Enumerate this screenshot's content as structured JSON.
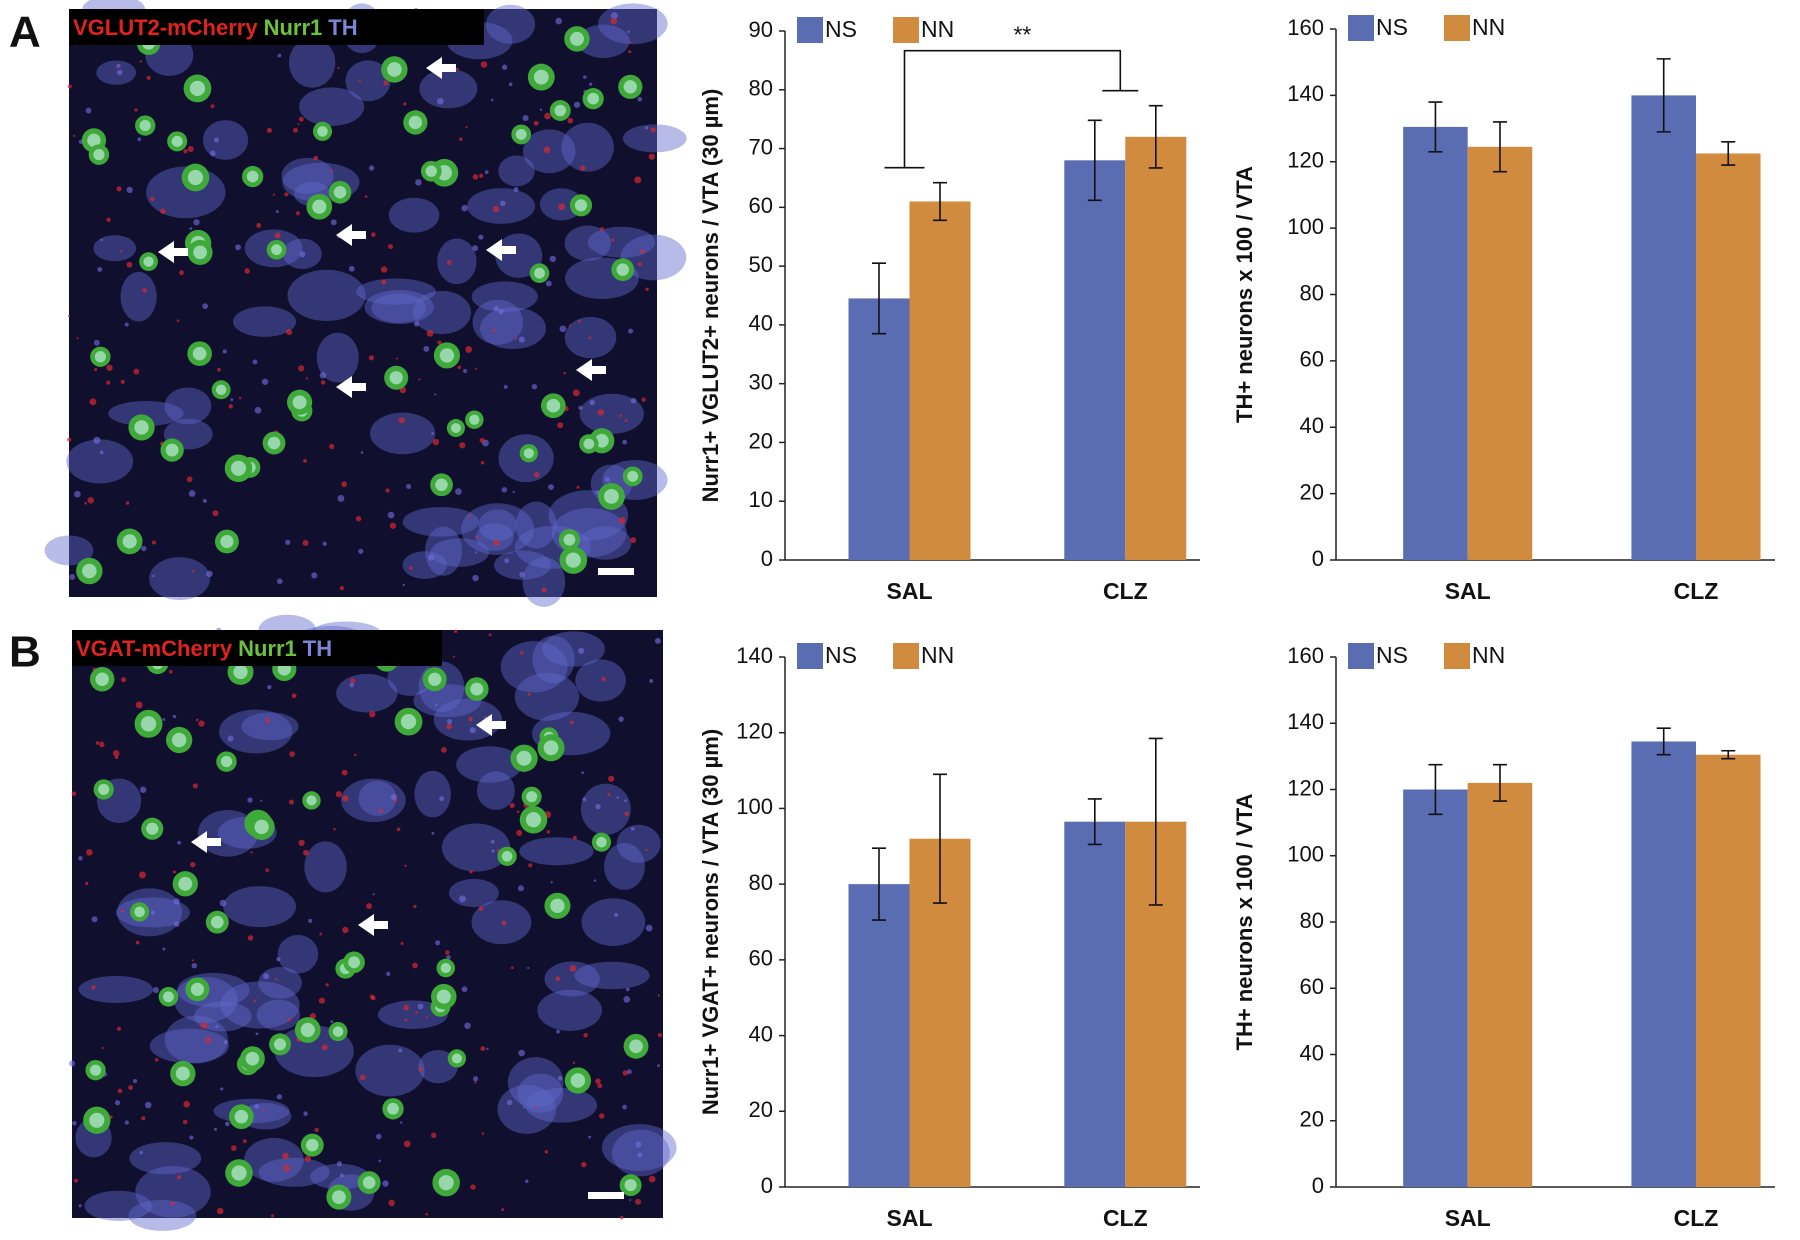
{
  "panels": [
    {
      "label": "A",
      "image_labels": [
        "VGLUT2-mCherry",
        "Nurr1",
        "TH"
      ]
    },
    {
      "label": "B",
      "image_labels": [
        "VGAT-mCherry",
        "Nurr1",
        "TH"
      ]
    }
  ],
  "chart_data": [
    {
      "type": "bar",
      "y_label": "Nurr1+ VGLUT2+ neurons / VTA (30 µm)",
      "categories": [
        "SAL",
        "CLZ"
      ],
      "series": [
        {
          "name": "NS",
          "color": "#5a6cb2",
          "values": [
            44.5,
            68
          ],
          "errors": [
            6,
            6.8
          ]
        },
        {
          "name": "NN",
          "color": "#d08b3e",
          "values": [
            61,
            72
          ],
          "errors": [
            3.2,
            5.3
          ]
        }
      ],
      "ylim": [
        0,
        90
      ],
      "yticks": [
        0,
        10,
        20,
        30,
        40,
        50,
        60,
        70,
        80,
        90
      ],
      "annotations": [
        {
          "text": "**"
        }
      ]
    },
    {
      "type": "bar",
      "y_label": "TH+ neurons x 100 / VTA",
      "categories": [
        "SAL",
        "CLZ"
      ],
      "series": [
        {
          "name": "NS",
          "color": "#5a6cb2",
          "values": [
            130.5,
            140
          ],
          "errors": [
            7.5,
            11
          ]
        },
        {
          "name": "NN",
          "color": "#d08b3e",
          "values": [
            124.5,
            122.5
          ],
          "errors": [
            7.5,
            3.5
          ]
        }
      ],
      "ylim": [
        0,
        160
      ],
      "yticks": [
        0,
        20,
        40,
        60,
        80,
        100,
        120,
        140,
        160
      ]
    },
    {
      "type": "bar",
      "y_label": "Nurr1+ VGAT+ neurons / VTA (30 µm)",
      "categories": [
        "SAL",
        "CLZ"
      ],
      "series": [
        {
          "name": "NS",
          "color": "#5a6cb2",
          "values": [
            80,
            96.5
          ],
          "errors": [
            9.5,
            6
          ]
        },
        {
          "name": "NN",
          "color": "#d08b3e",
          "values": [
            92,
            96.5
          ],
          "errors": [
            17,
            22
          ]
        }
      ],
      "ylim": [
        0,
        140
      ],
      "yticks": [
        0,
        20,
        40,
        60,
        80,
        100,
        120,
        140
      ]
    },
    {
      "type": "bar",
      "y_label": "TH+ neurons x 100 / VTA",
      "categories": [
        "SAL",
        "CLZ"
      ],
      "series": [
        {
          "name": "NS",
          "color": "#5a6cb2",
          "values": [
            120,
            134.5
          ],
          "errors": [
            7.5,
            4
          ]
        },
        {
          "name": "NN",
          "color": "#d08b3e",
          "values": [
            122,
            130.5
          ],
          "errors": [
            5.5,
            1.2
          ]
        }
      ],
      "ylim": [
        0,
        160
      ],
      "yticks": [
        0,
        20,
        40,
        60,
        80,
        100,
        120,
        140,
        160
      ]
    }
  ]
}
